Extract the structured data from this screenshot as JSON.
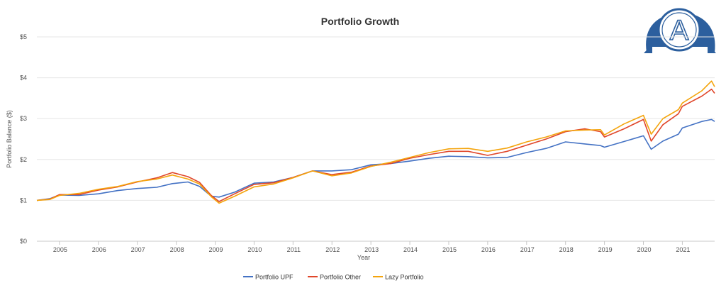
{
  "chart_data": {
    "type": "line",
    "title": "Portfolio Growth",
    "xlabel": "Year",
    "ylabel": "Portfolio Balance ($)",
    "xlim": [
      2004.42,
      2021.83
    ],
    "ylim": [
      0,
      5
    ],
    "y_ticks": [
      0,
      1,
      2,
      3,
      4,
      5
    ],
    "y_tick_labels": [
      "$0",
      "$1",
      "$2",
      "$3",
      "$4",
      "$5"
    ],
    "x_ticks": [
      2005,
      2006,
      2007,
      2008,
      2009,
      2010,
      2011,
      2012,
      2013,
      2014,
      2015,
      2016,
      2017,
      2018,
      2019,
      2020,
      2021
    ],
    "x_tick_labels": [
      "2005",
      "2006",
      "2007",
      "2008",
      "2009",
      "2010",
      "2011",
      "2012",
      "2013",
      "2014",
      "2015",
      "2016",
      "2017",
      "2018",
      "2019",
      "2020",
      "2021"
    ],
    "grid": true,
    "legend_position": "bottom-center",
    "series": [
      {
        "name": "Portfolio UPF",
        "color": "#4472c4",
        "x": [
          2004.42,
          2004.75,
          2005.0,
          2005.5,
          2006.0,
          2006.5,
          2007.0,
          2007.5,
          2007.9,
          2008.3,
          2008.6,
          2008.9,
          2009.1,
          2009.5,
          2010.0,
          2010.5,
          2011.0,
          2011.5,
          2012.0,
          2012.5,
          2013.0,
          2013.5,
          2014.0,
          2014.5,
          2015.0,
          2015.5,
          2016.0,
          2016.5,
          2017.0,
          2017.5,
          2018.0,
          2018.5,
          2018.9,
          2019.0,
          2019.5,
          2020.0,
          2020.2,
          2020.5,
          2020.9,
          2021.0,
          2021.5,
          2021.75,
          2021.83
        ],
        "values": [
          1.0,
          1.04,
          1.13,
          1.12,
          1.16,
          1.24,
          1.29,
          1.32,
          1.41,
          1.45,
          1.34,
          1.1,
          1.08,
          1.2,
          1.42,
          1.45,
          1.56,
          1.72,
          1.72,
          1.75,
          1.87,
          1.9,
          1.96,
          2.03,
          2.08,
          2.07,
          2.04,
          2.05,
          2.17,
          2.27,
          2.43,
          2.38,
          2.34,
          2.3,
          2.44,
          2.58,
          2.25,
          2.45,
          2.62,
          2.77,
          2.93,
          2.98,
          2.93
        ]
      },
      {
        "name": "Portfolio Other",
        "color": "#e0462a",
        "x": [
          2004.42,
          2004.75,
          2005.0,
          2005.5,
          2006.0,
          2006.5,
          2007.0,
          2007.5,
          2007.9,
          2008.3,
          2008.6,
          2008.9,
          2009.1,
          2009.5,
          2010.0,
          2010.5,
          2011.0,
          2011.5,
          2012.0,
          2012.5,
          2013.0,
          2013.5,
          2014.0,
          2014.5,
          2015.0,
          2015.5,
          2016.0,
          2016.5,
          2017.0,
          2017.5,
          2018.0,
          2018.5,
          2018.9,
          2019.0,
          2019.5,
          2020.0,
          2020.2,
          2020.5,
          2020.9,
          2021.0,
          2021.5,
          2021.75,
          2021.83
        ],
        "values": [
          1.0,
          1.03,
          1.14,
          1.14,
          1.25,
          1.33,
          1.45,
          1.55,
          1.68,
          1.58,
          1.44,
          1.12,
          0.97,
          1.16,
          1.39,
          1.43,
          1.56,
          1.72,
          1.63,
          1.69,
          1.84,
          1.9,
          2.03,
          2.12,
          2.2,
          2.2,
          2.1,
          2.2,
          2.35,
          2.5,
          2.68,
          2.75,
          2.68,
          2.55,
          2.75,
          2.98,
          2.45,
          2.85,
          3.12,
          3.3,
          3.55,
          3.72,
          3.62
        ]
      },
      {
        "name": "Lazy Portfolio",
        "color": "#f4a40c",
        "x": [
          2004.42,
          2004.75,
          2005.0,
          2005.5,
          2006.0,
          2006.5,
          2007.0,
          2007.5,
          2007.9,
          2008.3,
          2008.6,
          2008.9,
          2009.1,
          2009.5,
          2010.0,
          2010.5,
          2011.0,
          2011.5,
          2012.0,
          2012.5,
          2013.0,
          2013.5,
          2014.0,
          2014.5,
          2015.0,
          2015.5,
          2016.0,
          2016.5,
          2017.0,
          2017.5,
          2018.0,
          2018.5,
          2018.9,
          2019.0,
          2019.5,
          2020.0,
          2020.2,
          2020.5,
          2020.9,
          2021.0,
          2021.5,
          2021.75,
          2021.83
        ],
        "values": [
          1.0,
          1.02,
          1.12,
          1.17,
          1.27,
          1.34,
          1.46,
          1.52,
          1.62,
          1.52,
          1.4,
          1.09,
          0.93,
          1.1,
          1.33,
          1.4,
          1.55,
          1.72,
          1.6,
          1.67,
          1.83,
          1.93,
          2.05,
          2.17,
          2.26,
          2.27,
          2.2,
          2.28,
          2.43,
          2.55,
          2.7,
          2.72,
          2.73,
          2.6,
          2.87,
          3.08,
          2.62,
          3.0,
          3.22,
          3.38,
          3.68,
          3.92,
          3.78
        ]
      }
    ]
  },
  "legend": {
    "items": [
      {
        "label": "Portfolio UPF",
        "color": "#4472c4"
      },
      {
        "label": "Portfolio Other",
        "color": "#e0462a"
      },
      {
        "label": "Lazy Portfolio",
        "color": "#f4a40c"
      }
    ]
  },
  "badge": {
    "letter": "A",
    "color": "#2c5f9e"
  }
}
